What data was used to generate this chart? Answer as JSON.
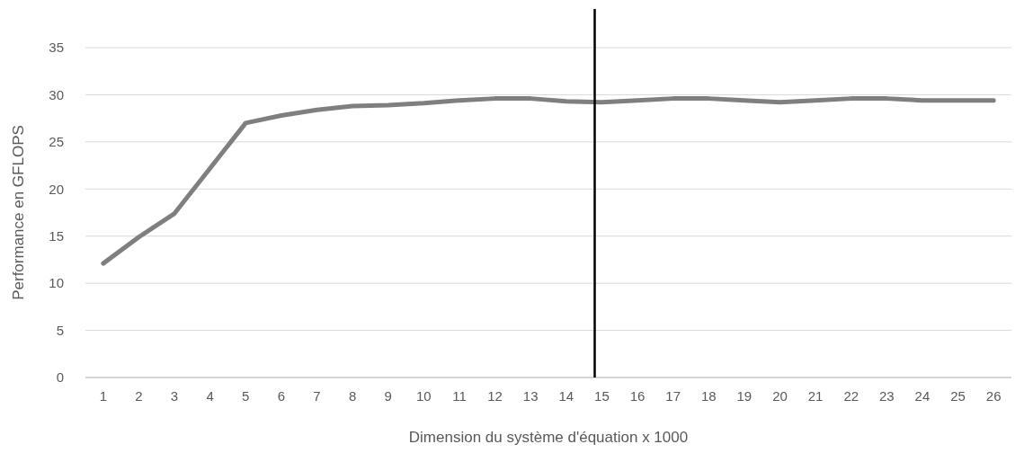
{
  "chart_data": {
    "type": "line",
    "xlabel": "Dimension du système d'équation x 1000",
    "ylabel": "Performance en GFLOPS",
    "x": [
      1,
      2,
      3,
      4,
      5,
      6,
      7,
      8,
      9,
      10,
      11,
      12,
      13,
      14,
      15,
      16,
      17,
      18,
      19,
      20,
      21,
      22,
      23,
      24,
      25,
      26
    ],
    "series": [
      {
        "color": "#7f7f7f",
        "values": [
          12.1,
          14.9,
          17.4,
          22.2,
          27.0,
          27.8,
          28.4,
          28.8,
          28.9,
          29.1,
          29.4,
          29.6,
          29.6,
          29.3,
          29.2,
          29.4,
          29.6,
          29.6,
          29.4,
          29.2,
          29.4,
          29.6,
          29.6,
          29.4,
          29.4,
          29.4
        ]
      }
    ],
    "xlim": [
      0.5,
      26.5
    ],
    "xticks": [
      1,
      2,
      3,
      4,
      5,
      6,
      7,
      8,
      9,
      10,
      11,
      12,
      13,
      14,
      15,
      16,
      17,
      18,
      19,
      20,
      21,
      22,
      23,
      24,
      25,
      26
    ],
    "ylim": [
      0,
      35
    ],
    "yticks": [
      0,
      5,
      10,
      15,
      20,
      25,
      30,
      35
    ],
    "grid": "y",
    "marker": "none",
    "line_style": "solid",
    "ref_lines": [
      {
        "axis": "x",
        "value": 14.8,
        "color": "#000000"
      }
    ]
  }
}
